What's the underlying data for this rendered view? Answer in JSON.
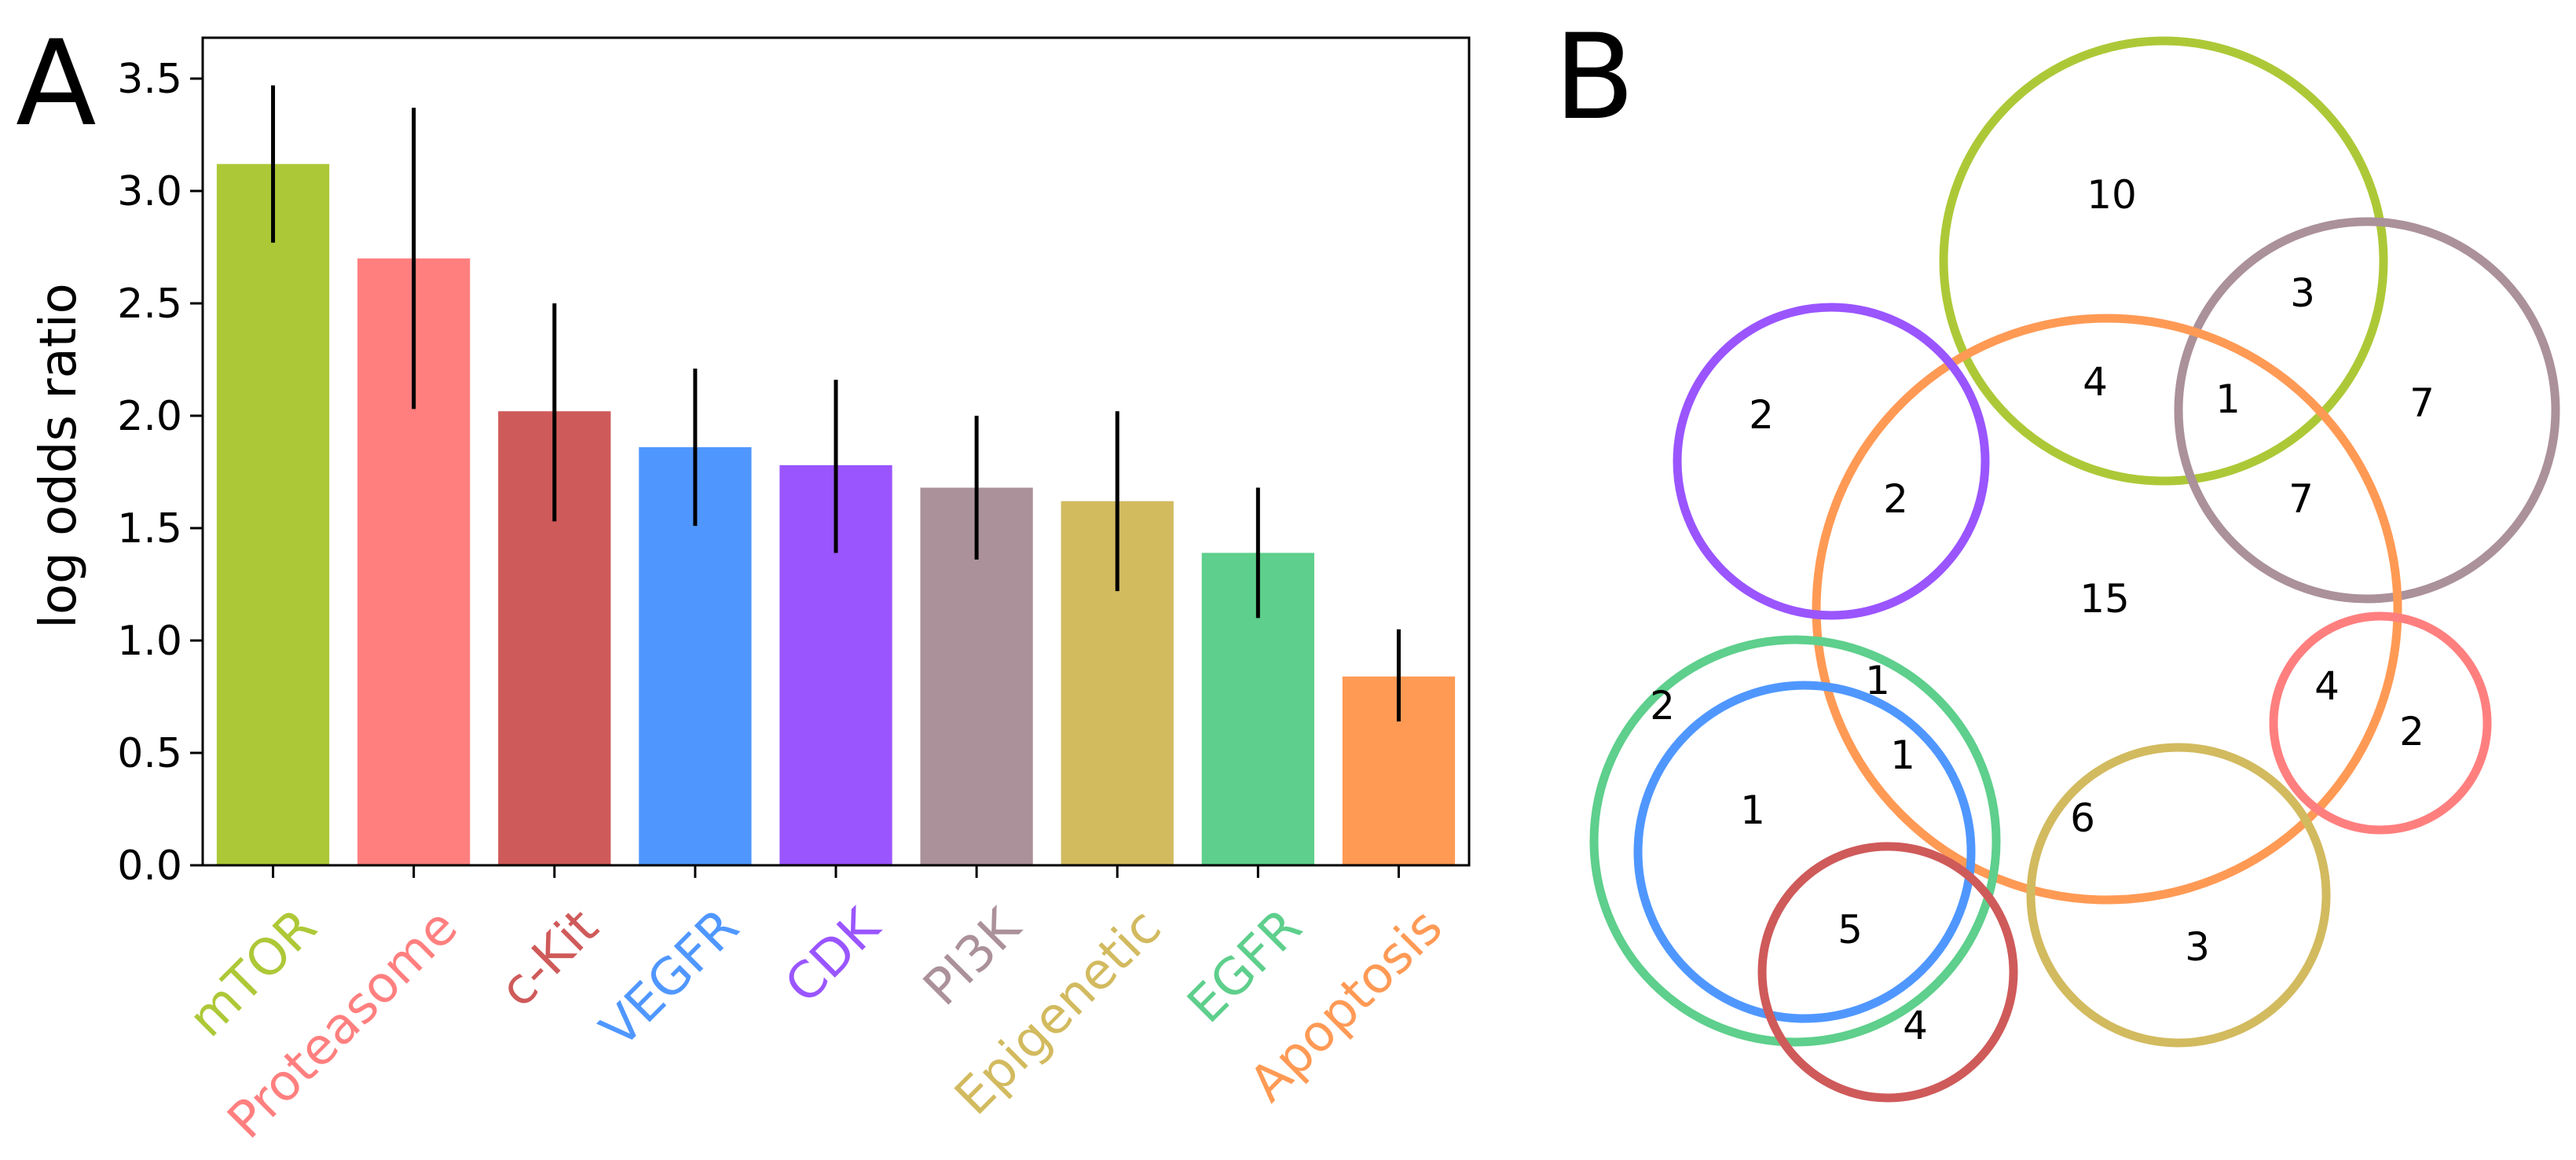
{
  "chart_data": [
    {
      "type": "bar",
      "panel": "A",
      "title": "",
      "xlabel": "",
      "ylabel": "log odds ratio",
      "ylim": [
        0,
        3.5
      ],
      "yticks": [
        "0.0",
        "0.5",
        "1.0",
        "1.5",
        "2.0",
        "2.5",
        "3.0",
        "3.5"
      ],
      "grid": false,
      "categories": [
        "mTOR",
        "Proteasome",
        "c-Kit",
        "VEGFR",
        "CDK",
        "PI3K",
        "Epigenetic",
        "EGFR",
        "Apoptosis"
      ],
      "values": [
        3.12,
        2.7,
        2.02,
        1.86,
        1.78,
        1.68,
        1.62,
        1.39,
        0.84
      ],
      "error_low": [
        2.77,
        2.03,
        1.53,
        1.51,
        1.39,
        1.36,
        1.22,
        1.1,
        0.64
      ],
      "error_high": [
        3.47,
        3.37,
        2.5,
        2.21,
        2.16,
        2.0,
        2.02,
        1.68,
        1.05
      ],
      "colors": [
        "#adc837",
        "#ff7f7f",
        "#cf5a5a",
        "#4f97ff",
        "#9a55ff",
        "#ab9199",
        "#d2ba5f",
        "#5ecf8c",
        "#ff9a55"
      ]
    },
    {
      "type": "venn",
      "panel": "B",
      "sets": [
        {
          "name": "mTOR",
          "color": "#adc837"
        },
        {
          "name": "PI3K",
          "color": "#ab9199"
        },
        {
          "name": "Apoptosis",
          "color": "#ff9a55"
        },
        {
          "name": "CDK",
          "color": "#9a55ff"
        },
        {
          "name": "EGFR",
          "color": "#5ecf8c"
        },
        {
          "name": "VEGFR",
          "color": "#4f97ff"
        },
        {
          "name": "c-Kit",
          "color": "#cf5a5a"
        },
        {
          "name": "Proteasome",
          "color": "#ff7f7f"
        },
        {
          "name": "Epigenetic",
          "color": "#d2ba5f"
        }
      ],
      "region_counts": [
        "10",
        "3",
        "4",
        "1",
        "7",
        "2",
        "15",
        "7",
        "2",
        "1",
        "4",
        "2",
        "1",
        "1",
        "6",
        "3",
        "5",
        "4",
        "2"
      ]
    }
  ]
}
